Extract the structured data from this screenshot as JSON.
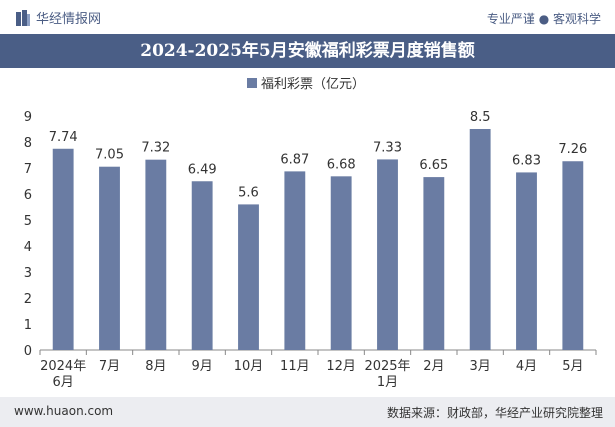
{
  "header": {
    "brand": "华经情报网",
    "slogan_left": "专业严谨",
    "slogan_right": "客观科学"
  },
  "footer": {
    "url": "www.huaon.com",
    "source": "数据来源：财政部，华经产业研究院整理"
  },
  "chart_data": {
    "type": "bar",
    "title": "2024-2025年5月安徽福利彩票月度销售额",
    "categories": [
      [
        "2024年",
        "6月"
      ],
      [
        "7月"
      ],
      [
        "8月"
      ],
      [
        "9月"
      ],
      [
        "10月"
      ],
      [
        "11月"
      ],
      [
        "12月"
      ],
      [
        "2025年",
        "1月"
      ],
      [
        "2月"
      ],
      [
        "3月"
      ],
      [
        "4月"
      ],
      [
        "5月"
      ]
    ],
    "series": [
      {
        "name": "福利彩票（亿元）",
        "values": [
          7.74,
          7.05,
          7.32,
          6.49,
          5.6,
          6.87,
          6.68,
          7.33,
          6.65,
          8.5,
          6.83,
          7.26
        ]
      }
    ],
    "yticks": [
      "0",
      "1",
      "2",
      "3",
      "4",
      "5",
      "6",
      "7",
      "8",
      "9"
    ],
    "ylim": [
      0,
      9
    ],
    "legend_position": "top-center",
    "grid": false,
    "bar_color": "#6a7ca3"
  }
}
